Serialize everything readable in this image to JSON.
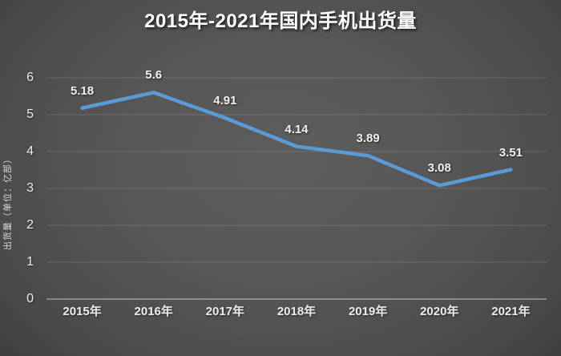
{
  "chart_data": {
    "type": "line",
    "title": "2015年-2021年国内手机出货量",
    "categories": [
      "2015年",
      "2016年",
      "2017年",
      "2018年",
      "2019年",
      "2020年",
      "2021年"
    ],
    "values": [
      5.18,
      5.6,
      4.91,
      4.14,
      3.89,
      3.08,
      3.51
    ],
    "value_labels": [
      "5.18",
      "5.6",
      "4.91",
      "4.14",
      "3.89",
      "3.08",
      "3.51"
    ],
    "xlabel": "",
    "ylabel": "出货量（单位：亿部）",
    "ylim": [
      0,
      6
    ],
    "yticks": [
      "0",
      "1",
      "2",
      "3",
      "4",
      "5",
      "6"
    ],
    "grid": "horizontal",
    "legend": "none",
    "line_color": "#5B9BD5",
    "gridline_color": "rgba(255,255,255,0.14)",
    "axis_line_color": "rgba(255,255,255,0.45)"
  }
}
